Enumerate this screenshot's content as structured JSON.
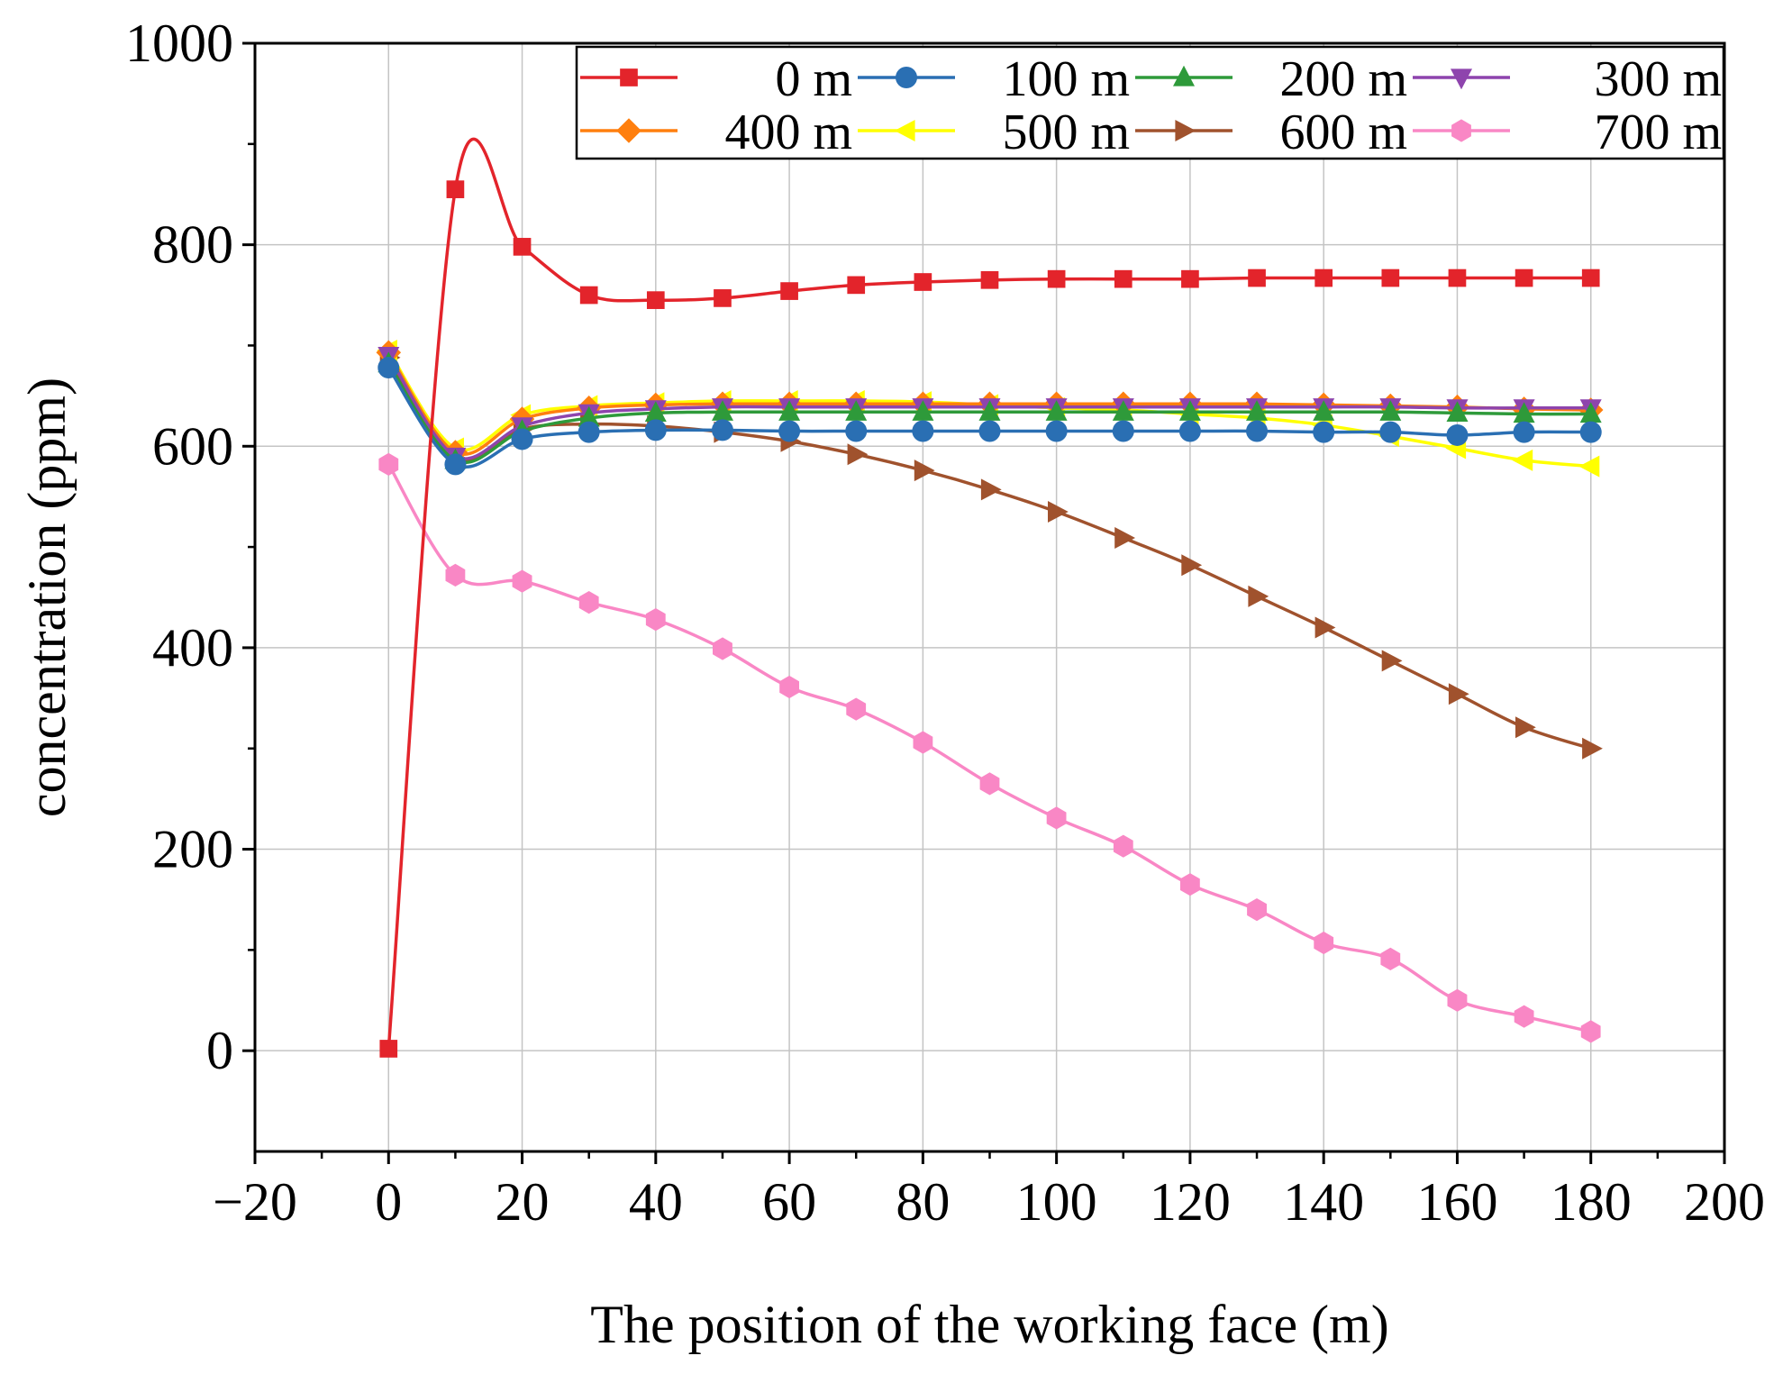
{
  "chart_data": {
    "type": "line",
    "title": "",
    "xlabel": "The position of the working face (m)",
    "ylabel": "concentration (ppm)",
    "xlim": [
      -20,
      200
    ],
    "ylim": [
      -100,
      1000
    ],
    "xticks": [
      -20,
      0,
      20,
      40,
      60,
      80,
      100,
      120,
      140,
      160,
      180,
      200
    ],
    "xtick_labels": [
      "−20",
      "0",
      "20",
      "40",
      "60",
      "80",
      "100",
      "120",
      "140",
      "160",
      "180",
      "200"
    ],
    "yticks": [
      0,
      200,
      400,
      600,
      800,
      1000
    ],
    "ytick_labels": [
      "0",
      "200",
      "400",
      "600",
      "800",
      "1000"
    ],
    "grid": true,
    "legend_position": "top-right",
    "x": [
      0,
      10,
      20,
      30,
      40,
      50,
      60,
      70,
      80,
      90,
      100,
      110,
      120,
      130,
      140,
      150,
      160,
      170,
      180
    ],
    "series": [
      {
        "name": "0 m",
        "color": "#e3242b",
        "marker": "square",
        "values": [
          2,
          855,
          798,
          750,
          745,
          747,
          754,
          760,
          763,
          765,
          766,
          766,
          766,
          767,
          767,
          767,
          767,
          767,
          767
        ]
      },
      {
        "name": "100 m",
        "color": "#2a6fb3",
        "marker": "circle",
        "values": [
          678,
          582,
          607,
          614,
          616,
          616,
          615,
          615,
          615,
          615,
          615,
          615,
          615,
          615,
          614,
          614,
          611,
          614,
          614
        ]
      },
      {
        "name": "200 m",
        "color": "#2e9a3a",
        "marker": "triangle-up",
        "values": [
          682,
          586,
          615,
          628,
          633,
          634,
          634,
          634,
          634,
          634,
          634,
          634,
          634,
          634,
          634,
          634,
          633,
          632,
          632
        ]
      },
      {
        "name": "300 m",
        "color": "#8e44ad",
        "marker": "triangle-down",
        "values": [
          690,
          590,
          620,
          633,
          637,
          639,
          639,
          639,
          639,
          639,
          639,
          639,
          639,
          639,
          639,
          639,
          638,
          638,
          638
        ]
      },
      {
        "name": "400 m",
        "color": "#ff7f0e",
        "marker": "diamond",
        "values": [
          693,
          594,
          627,
          638,
          641,
          642,
          642,
          642,
          642,
          642,
          642,
          642,
          642,
          642,
          641,
          640,
          639,
          637,
          636
        ]
      },
      {
        "name": "500 m",
        "color": "#ffff00",
        "marker": "triangle-left",
        "values": [
          695,
          598,
          631,
          640,
          643,
          645,
          645,
          645,
          644,
          641,
          638,
          636,
          632,
          628,
          621,
          610,
          598,
          586,
          580
        ]
      },
      {
        "name": "600 m",
        "color": "#a0522d",
        "marker": "triangle-right",
        "values": [
          688,
          588,
          617,
          622,
          620,
          614,
          605,
          592,
          576,
          557,
          535,
          509,
          482,
          451,
          420,
          387,
          354,
          321,
          300
        ]
      },
      {
        "name": "700 m",
        "color": "#f987c5",
        "marker": "hexagon",
        "values": [
          582,
          472,
          466,
          445,
          428,
          399,
          361,
          339,
          306,
          265,
          231,
          203,
          165,
          140,
          107,
          91,
          50,
          34,
          19
        ]
      }
    ]
  }
}
